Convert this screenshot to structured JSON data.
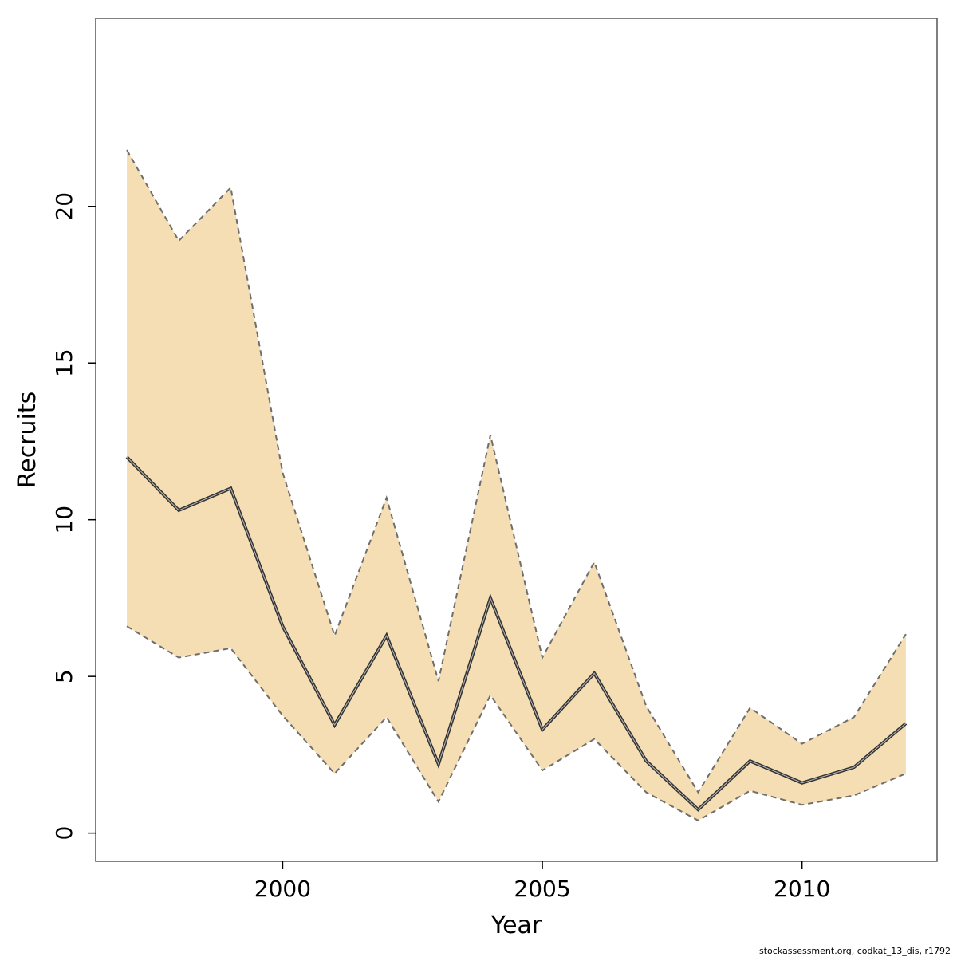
{
  "chart_data": {
    "type": "area",
    "title": "",
    "xlabel": "Year",
    "ylabel": "Recruits",
    "xlim": [
      1996.4,
      2012.6
    ],
    "ylim": [
      -0.9,
      26.0
    ],
    "x_ticks": [
      2000,
      2005,
      2010
    ],
    "y_ticks": [
      0,
      5,
      10,
      15,
      20
    ],
    "x_tick_labels": [
      "2000",
      "2005",
      "2010"
    ],
    "y_tick_labels": [
      "0",
      "5",
      "10",
      "15",
      "20"
    ],
    "grid": false,
    "legend": "none",
    "x": [
      1997,
      1998,
      1999,
      2000,
      2001,
      2002,
      2003,
      2004,
      2005,
      2006,
      2007,
      2008,
      2009,
      2010,
      2011,
      2012
    ],
    "series": [
      {
        "role": "estimate",
        "values": [
          12.0,
          10.3,
          11.0,
          6.6,
          3.45,
          6.3,
          2.2,
          7.5,
          3.3,
          5.1,
          2.3,
          0.75,
          2.3,
          1.6,
          2.1,
          3.5
        ]
      },
      {
        "role": "upper",
        "values": [
          21.8,
          18.9,
          20.6,
          11.5,
          6.3,
          10.7,
          4.85,
          12.7,
          5.6,
          8.65,
          4.05,
          1.3,
          4.0,
          2.85,
          3.7,
          6.35
        ]
      },
      {
        "role": "lower",
        "values": [
          6.6,
          5.6,
          5.9,
          3.75,
          1.9,
          3.7,
          1.0,
          4.4,
          2.0,
          3.0,
          1.3,
          0.4,
          1.35,
          0.9,
          1.2,
          1.9
        ]
      }
    ],
    "colors": {
      "band": "#f5deb3",
      "bound_line": "#6e6e6e",
      "estimate_line": "#333333",
      "frame": "#555555"
    }
  },
  "footer": {
    "caption": "stockassessment.org, codkat_13_dis, r1792"
  }
}
